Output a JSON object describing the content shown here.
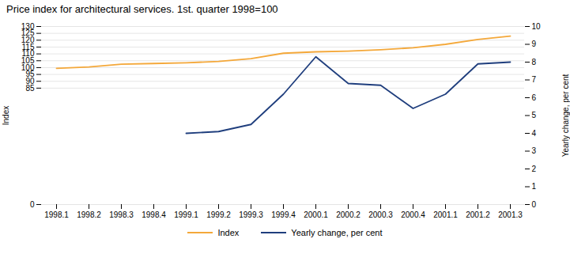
{
  "chart_data": {
    "type": "line",
    "title": "Price index for architectural services. 1st. quarter 1998=100",
    "categories": [
      "1998.1",
      "1998.2",
      "1998.3",
      "1998.4",
      "1999.1",
      "1999.2",
      "1999.3",
      "1999.4",
      "2000.1",
      "2000.2",
      "2000.3",
      "2000.4",
      "2001.1",
      "2001.2",
      "2001.3"
    ],
    "series": [
      {
        "name": "Index",
        "color": "#F4A83A",
        "values": [
          99.5,
          100.5,
          102.5,
          103.0,
          103.5,
          104.5,
          106.5,
          110.5,
          111.5,
          112.0,
          113.0,
          114.5,
          117.0,
          120.5,
          123.0
        ]
      },
      {
        "name": "Yearly change, per cent",
        "color": "#1F3E7D",
        "axis": "y2",
        "values": [
          null,
          null,
          null,
          null,
          4.0,
          4.1,
          4.5,
          6.2,
          8.3,
          6.8,
          6.7,
          5.4,
          6.2,
          7.9,
          8.0
        ]
      }
    ],
    "ylabel": "Index",
    "y2label": "Yearly change, per cent",
    "ylim": [
      0,
      130
    ],
    "yticks": [
      0,
      85,
      90,
      95,
      100,
      105,
      110,
      115,
      120,
      125,
      130
    ],
    "y2lim": [
      0,
      10
    ],
    "y2ticks": [
      0,
      1,
      2,
      3,
      4,
      5,
      6,
      7,
      8,
      9,
      10
    ],
    "grid": true,
    "legend": "bottom"
  }
}
